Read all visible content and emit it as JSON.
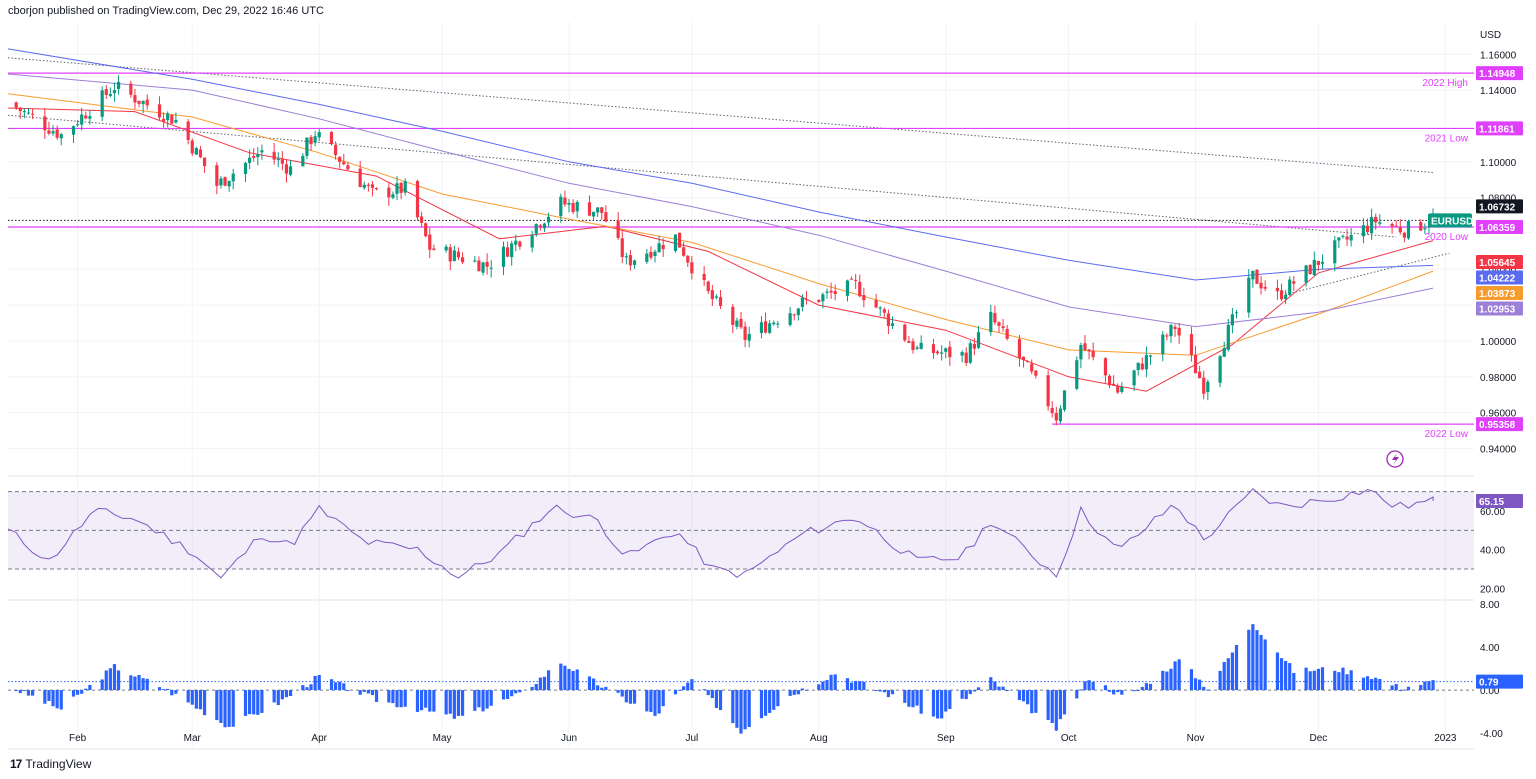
{
  "header": {
    "publisher": "cborjon published on TradingView.com, Dec 29, 2022 16:46 UTC"
  },
  "footer": {
    "brand": "TradingView",
    "logo_mark": "17"
  },
  "chart_data": {
    "type": "candlestick",
    "symbol": "EURUSD",
    "currency": "USD",
    "price_axis": {
      "ylim": [
        0.928,
        1.178
      ],
      "ticks": [
        1.16,
        1.14,
        1.1,
        1.08,
        1.04,
        1.02,
        1.0,
        0.98,
        0.96,
        0.94
      ],
      "tick_labels": [
        "1.16000",
        "1.14000",
        "1.10000",
        "1.08000",
        "1.04000",
        "1.02000",
        "1.00000",
        "0.98000",
        "0.96000",
        "0.94000"
      ]
    },
    "x_axis": {
      "start": "2022-01-15",
      "end": "2023-01-08",
      "ticks": [
        {
          "date": "2022-02-01",
          "label": "Feb"
        },
        {
          "date": "2022-03-01",
          "label": "Mar"
        },
        {
          "date": "2022-04-01",
          "label": "Apr"
        },
        {
          "date": "2022-05-01",
          "label": "May"
        },
        {
          "date": "2022-06-01",
          "label": "Jun"
        },
        {
          "date": "2022-07-01",
          "label": "Jul"
        },
        {
          "date": "2022-08-01",
          "label": "Aug"
        },
        {
          "date": "2022-09-01",
          "label": "Sep"
        },
        {
          "date": "2022-10-01",
          "label": "Oct"
        },
        {
          "date": "2022-11-01",
          "label": "Nov"
        },
        {
          "date": "2022-12-01",
          "label": "Dec"
        },
        {
          "date": "2023-01-01",
          "label": "2023"
        }
      ]
    },
    "price_path": [
      [
        "2022-01-15",
        1.133
      ],
      [
        "2022-01-28",
        1.115
      ],
      [
        "2022-02-10",
        1.142
      ],
      [
        "2022-02-25",
        1.123
      ],
      [
        "2022-03-07",
        1.087
      ],
      [
        "2022-03-18",
        1.106
      ],
      [
        "2022-03-25",
        1.096
      ],
      [
        "2022-03-31",
        1.116
      ],
      [
        "2022-04-14",
        1.082
      ],
      [
        "2022-04-22",
        1.085
      ],
      [
        "2022-04-28",
        1.052
      ],
      [
        "2022-05-12",
        1.042
      ],
      [
        "2022-05-20",
        1.057
      ],
      [
        "2022-05-30",
        1.077
      ],
      [
        "2022-06-09",
        1.072
      ],
      [
        "2022-06-15",
        1.044
      ],
      [
        "2022-06-27",
        1.058
      ],
      [
        "2022-07-05",
        1.026
      ],
      [
        "2022-07-14",
        1.002
      ],
      [
        "2022-07-28",
        1.021
      ],
      [
        "2022-08-10",
        1.031
      ],
      [
        "2022-08-25",
        0.995
      ],
      [
        "2022-09-06",
        0.992
      ],
      [
        "2022-09-12",
        1.013
      ],
      [
        "2022-09-21",
        0.984
      ],
      [
        "2022-09-28",
        0.958
      ],
      [
        "2022-10-04",
        0.998
      ],
      [
        "2022-10-13",
        0.972
      ],
      [
        "2022-10-27",
        1.008
      ],
      [
        "2022-11-03",
        0.975
      ],
      [
        "2022-11-15",
        1.036
      ],
      [
        "2022-11-21",
        1.025
      ],
      [
        "2022-12-05",
        1.052
      ],
      [
        "2022-12-15",
        1.067
      ],
      [
        "2022-12-22",
        1.062
      ],
      [
        "2022-12-29",
        1.0673
      ]
    ],
    "moving_averages": [
      {
        "label": "1.05645",
        "color": "#f23645",
        "points": [
          [
            "2022-01-15",
            1.13
          ],
          [
            "2022-02-15",
            1.128
          ],
          [
            "2022-03-15",
            1.105
          ],
          [
            "2022-04-15",
            1.092
          ],
          [
            "2022-05-15",
            1.057
          ],
          [
            "2022-06-10",
            1.064
          ],
          [
            "2022-07-05",
            1.05
          ],
          [
            "2022-08-01",
            1.02
          ],
          [
            "2022-09-01",
            1.006
          ],
          [
            "2022-10-01",
            0.98
          ],
          [
            "2022-10-20",
            0.972
          ],
          [
            "2022-11-10",
            0.998
          ],
          [
            "2022-12-01",
            1.038
          ],
          [
            "2022-12-29",
            1.056
          ]
        ]
      },
      {
        "label": "1.03873",
        "color": "#f79b2e",
        "points": [
          [
            "2022-01-15",
            1.138
          ],
          [
            "2022-03-01",
            1.125
          ],
          [
            "2022-04-01",
            1.105
          ],
          [
            "2022-05-01",
            1.082
          ],
          [
            "2022-06-01",
            1.068
          ],
          [
            "2022-07-01",
            1.055
          ],
          [
            "2022-08-01",
            1.032
          ],
          [
            "2022-09-01",
            1.012
          ],
          [
            "2022-10-01",
            0.995
          ],
          [
            "2022-11-01",
            0.992
          ],
          [
            "2022-12-01",
            1.015
          ],
          [
            "2022-12-29",
            1.039
          ]
        ]
      },
      {
        "label": "1.02953",
        "color": "#9c7fd6",
        "points": [
          [
            "2022-01-15",
            1.149
          ],
          [
            "2022-03-01",
            1.14
          ],
          [
            "2022-04-01",
            1.124
          ],
          [
            "2022-05-01",
            1.106
          ],
          [
            "2022-06-01",
            1.088
          ],
          [
            "2022-07-01",
            1.075
          ],
          [
            "2022-08-01",
            1.059
          ],
          [
            "2022-09-01",
            1.039
          ],
          [
            "2022-10-01",
            1.019
          ],
          [
            "2022-11-01",
            1.008
          ],
          [
            "2022-12-01",
            1.016
          ],
          [
            "2022-12-29",
            1.0295
          ]
        ]
      },
      {
        "label": "1.04222",
        "color": "#5b6bf0",
        "points": [
          [
            "2022-01-15",
            1.163
          ],
          [
            "2022-03-01",
            1.146
          ],
          [
            "2022-04-01",
            1.132
          ],
          [
            "2022-05-01",
            1.117
          ],
          [
            "2022-06-01",
            1.1
          ],
          [
            "2022-07-01",
            1.088
          ],
          [
            "2022-08-01",
            1.072
          ],
          [
            "2022-09-01",
            1.058
          ],
          [
            "2022-10-01",
            1.045
          ],
          [
            "2022-11-01",
            1.034
          ],
          [
            "2022-12-01",
            1.04
          ],
          [
            "2022-12-29",
            1.0422
          ]
        ]
      }
    ],
    "trendlines": [
      {
        "points": [
          [
            "2022-01-15",
            1.158
          ],
          [
            "2022-12-29",
            1.094
          ]
        ]
      },
      {
        "points": [
          [
            "2022-01-15",
            1.126
          ],
          [
            "2022-12-20",
            1.058
          ]
        ]
      },
      {
        "points": [
          [
            "2022-11-23",
            1.026
          ],
          [
            "2023-01-02",
            1.049
          ]
        ]
      }
    ],
    "horizontal_levels": [
      {
        "price": 1.14948,
        "label": "1.14948",
        "note": "2022 High",
        "color": "#e040fb"
      },
      {
        "price": 1.11861,
        "label": "1.11861",
        "note": "2021 Low",
        "color": "#e040fb"
      },
      {
        "price": 1.06359,
        "label": "1.06359",
        "note": "2020 Low",
        "color": "#e040fb"
      },
      {
        "price": 0.95358,
        "label": "0.95358",
        "note": "2022 Low",
        "color": "#e040fb",
        "from": "2022-09-27"
      }
    ],
    "last_price": {
      "price": 1.06732,
      "label": "1.06732",
      "symbol_label": "EURUSD",
      "symbol_color": "#089981"
    },
    "candle_colors": {
      "up": "#089981",
      "down": "#f23645"
    },
    "rsi": {
      "value_label": "65.15",
      "color": "#7e57c2",
      "ylim": [
        15,
        75
      ],
      "band": [
        30,
        70
      ],
      "ticks": [
        60,
        40,
        20
      ],
      "tick_labels": [
        "60.00",
        "40.00",
        "20.00"
      ],
      "path": [
        [
          "2022-01-15",
          50
        ],
        [
          "2022-01-25",
          34
        ],
        [
          "2022-02-05",
          60
        ],
        [
          "2022-02-15",
          56
        ],
        [
          "2022-03-01",
          39
        ],
        [
          "2022-03-08",
          25
        ],
        [
          "2022-03-18",
          48
        ],
        [
          "2022-03-25",
          42
        ],
        [
          "2022-04-01",
          61
        ],
        [
          "2022-04-12",
          44
        ],
        [
          "2022-04-25",
          40
        ],
        [
          "2022-05-05",
          26
        ],
        [
          "2022-05-15",
          38
        ],
        [
          "2022-05-28",
          62
        ],
        [
          "2022-06-08",
          55
        ],
        [
          "2022-06-15",
          36
        ],
        [
          "2022-06-27",
          50
        ],
        [
          "2022-07-06",
          30
        ],
        [
          "2022-07-14",
          27
        ],
        [
          "2022-07-28",
          48
        ],
        [
          "2022-08-10",
          57
        ],
        [
          "2022-08-25",
          34
        ],
        [
          "2022-09-05",
          36
        ],
        [
          "2022-09-12",
          55
        ],
        [
          "2022-09-28",
          27
        ],
        [
          "2022-10-04",
          60
        ],
        [
          "2022-10-13",
          39
        ],
        [
          "2022-10-27",
          64
        ],
        [
          "2022-11-03",
          45
        ],
        [
          "2022-11-15",
          70
        ],
        [
          "2022-11-22",
          62
        ],
        [
          "2022-12-05",
          67
        ],
        [
          "2022-12-13",
          71
        ],
        [
          "2022-12-20",
          62
        ],
        [
          "2022-12-29",
          65.15
        ]
      ]
    },
    "histogram": {
      "value_label": "0.79",
      "color": "#2962ff",
      "ylim": [
        -5.3,
        8.2
      ],
      "ticks": [
        8,
        4,
        0,
        -4
      ],
      "tick_labels": [
        "8.00",
        "4.00",
        "0.00",
        "-4.00"
      ],
      "path": [
        [
          "2022-01-15",
          0.4
        ],
        [
          "2022-01-28",
          -1.8
        ],
        [
          "2022-02-10",
          2.2
        ],
        [
          "2022-02-22",
          0.2
        ],
        [
          "2022-03-10",
          -3.4
        ],
        [
          "2022-03-22",
          -1.2
        ],
        [
          "2022-04-01",
          1.3
        ],
        [
          "2022-04-15",
          -0.9
        ],
        [
          "2022-05-05",
          -2.6
        ],
        [
          "2022-05-20",
          -0.4
        ],
        [
          "2022-05-30",
          2.6
        ],
        [
          "2022-06-12",
          -0.3
        ],
        [
          "2022-06-22",
          -2.4
        ],
        [
          "2022-07-01",
          1.0
        ],
        [
          "2022-07-13",
          -3.8
        ],
        [
          "2022-07-25",
          -0.5
        ],
        [
          "2022-08-05",
          1.6
        ],
        [
          "2022-08-18",
          -0.4
        ],
        [
          "2022-08-30",
          -2.7
        ],
        [
          "2022-09-12",
          1.0
        ],
        [
          "2022-09-28",
          -3.6
        ],
        [
          "2022-10-06",
          1.2
        ],
        [
          "2022-10-15",
          -0.8
        ],
        [
          "2022-10-28",
          2.8
        ],
        [
          "2022-11-04",
          0.2
        ],
        [
          "2022-11-15",
          6.3
        ],
        [
          "2022-11-25",
          1.8
        ],
        [
          "2022-12-05",
          2.0
        ],
        [
          "2022-12-14",
          1.3
        ],
        [
          "2022-12-21",
          0.2
        ],
        [
          "2022-12-29",
          0.79
        ]
      ]
    }
  }
}
